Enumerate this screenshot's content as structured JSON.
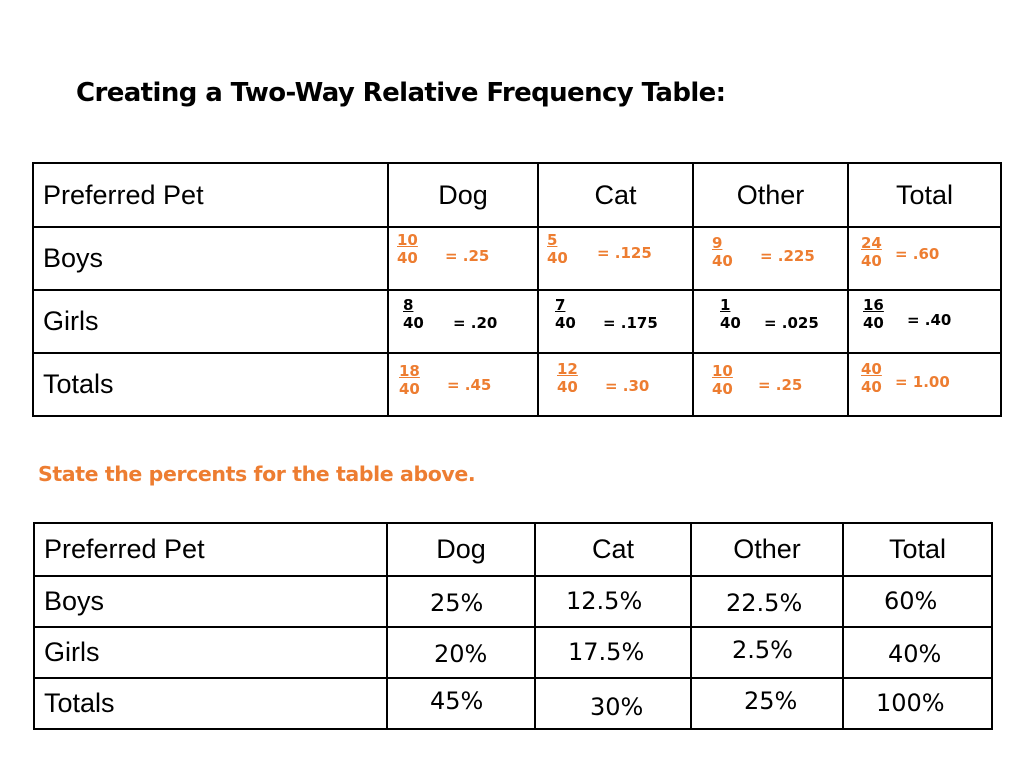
{
  "title": "Creating a Two-Way Relative Frequency Table:",
  "subtitle": "State the percents for the table above.",
  "colors": {
    "accent": "#ED7D31",
    "text": "#000000"
  },
  "table1": {
    "headers": [
      "Preferred Pet",
      "Dog",
      "Cat",
      "Other",
      "Total"
    ],
    "rows": [
      {
        "label": "Boys",
        "cells": [
          {
            "num": "10",
            "den": "40",
            "eq": "=  .25"
          },
          {
            "num": "5",
            "den": "40",
            "eq": "=  .125"
          },
          {
            "num": "9",
            "den": "40",
            "eq": "=  .225"
          },
          {
            "num": "24",
            "den": "40",
            "eq": "=  .60"
          }
        ]
      },
      {
        "label": "Girls",
        "cells": [
          {
            "num": "8",
            "den": "40",
            "eq": "=  .20"
          },
          {
            "num": "7",
            "den": "40",
            "eq": "=  .175"
          },
          {
            "num": "1",
            "den": "40",
            "eq": "=  .025"
          },
          {
            "num": "16",
            "den": "40",
            "eq": "=  .40"
          }
        ]
      },
      {
        "label": "Totals",
        "cells": [
          {
            "num": "18",
            "den": "40",
            "eq": "=  .45"
          },
          {
            "num": "12",
            "den": "40",
            "eq": "=  .30"
          },
          {
            "num": "10",
            "den": "40",
            "eq": "=  .25"
          },
          {
            "num": "40",
            "den": "40",
            "eq": "=  1.00"
          }
        ]
      }
    ]
  },
  "table2": {
    "headers": [
      "Preferred Pet",
      "Dog",
      "Cat",
      "Other",
      "Total"
    ],
    "rows": [
      {
        "label": "Boys",
        "cells": [
          "25%",
          "12.5%",
          "22.5%",
          "60%"
        ]
      },
      {
        "label": "Girls",
        "cells": [
          "20%",
          "17.5%",
          "2.5%",
          "40%"
        ]
      },
      {
        "label": "Totals",
        "cells": [
          "45%",
          "30%",
          "25%",
          "100%"
        ]
      }
    ]
  }
}
